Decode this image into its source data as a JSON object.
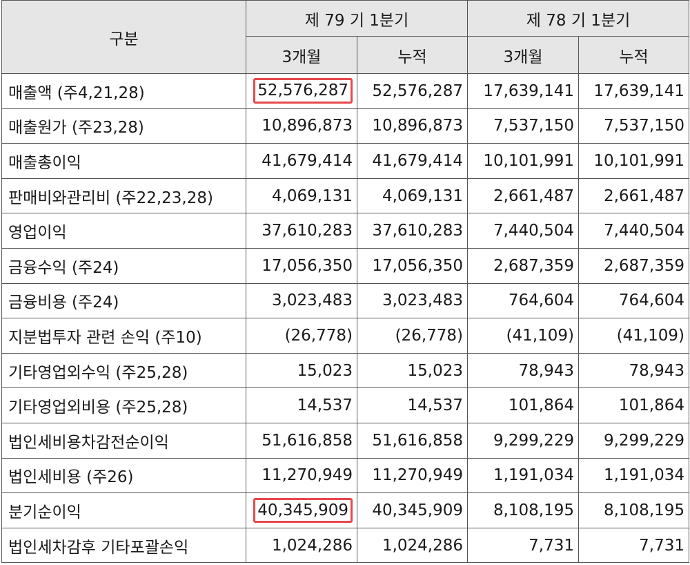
{
  "table": {
    "header": {
      "category": "구분",
      "period_current": "제 79 기 1분기",
      "period_prior": "제 78 기 1분기",
      "sub_3m": "3개월",
      "sub_cum": "누적"
    },
    "rows": [
      {
        "label": "매출액 (주4,21,28)",
        "cur_3m": "52,576,287",
        "cur_cum": "52,576,287",
        "pri_3m": "17,639,141",
        "pri_cum": "17,639,141",
        "highlight_cur_3m": true
      },
      {
        "label": "매출원가 (주23,28)",
        "cur_3m": "10,896,873",
        "cur_cum": "10,896,873",
        "pri_3m": "7,537,150",
        "pri_cum": "7,537,150"
      },
      {
        "label": "매출총이익",
        "cur_3m": "41,679,414",
        "cur_cum": "41,679,414",
        "pri_3m": "10,101,991",
        "pri_cum": "10,101,991"
      },
      {
        "label": "판매비와관리비 (주22,23,28)",
        "cur_3m": "4,069,131",
        "cur_cum": "4,069,131",
        "pri_3m": "2,661,487",
        "pri_cum": "2,661,487"
      },
      {
        "label": "영업이익",
        "cur_3m": "37,610,283",
        "cur_cum": "37,610,283",
        "pri_3m": "7,440,504",
        "pri_cum": "7,440,504"
      },
      {
        "label": "금융수익 (주24)",
        "cur_3m": "17,056,350",
        "cur_cum": "17,056,350",
        "pri_3m": "2,687,359",
        "pri_cum": "2,687,359"
      },
      {
        "label": "금융비용 (주24)",
        "cur_3m": "3,023,483",
        "cur_cum": "3,023,483",
        "pri_3m": "764,604",
        "pri_cum": "764,604"
      },
      {
        "label": "지분법투자 관련 손익 (주10)",
        "cur_3m": "(26,778)",
        "cur_cum": "(26,778)",
        "pri_3m": "(41,109)",
        "pri_cum": "(41,109)"
      },
      {
        "label": "기타영업외수익 (주25,28)",
        "cur_3m": "15,023",
        "cur_cum": "15,023",
        "pri_3m": "78,943",
        "pri_cum": "78,943"
      },
      {
        "label": "기타영업외비용 (주25,28)",
        "cur_3m": "14,537",
        "cur_cum": "14,537",
        "pri_3m": "101,864",
        "pri_cum": "101,864"
      },
      {
        "label": "법인세비용차감전순이익",
        "cur_3m": "51,616,858",
        "cur_cum": "51,616,858",
        "pri_3m": "9,299,229",
        "pri_cum": "9,299,229"
      },
      {
        "label": "법인세비용 (주26)",
        "cur_3m": "11,270,949",
        "cur_cum": "11,270,949",
        "pri_3m": "1,191,034",
        "pri_cum": "1,191,034"
      },
      {
        "label": "분기순이익",
        "cur_3m": "40,345,909",
        "cur_cum": "40,345,909",
        "pri_3m": "8,108,195",
        "pri_cum": "8,108,195",
        "highlight_cur_3m": true
      },
      {
        "label": "법인세차감후 기타포괄손익",
        "cur_3m": "1,024,286",
        "cur_cum": "1,024,286",
        "pri_3m": "7,731",
        "pri_cum": "7,731"
      }
    ]
  },
  "colors": {
    "header_bg": "#e6e6e6",
    "border": "#555555",
    "highlight_border": "#e8474c"
  }
}
